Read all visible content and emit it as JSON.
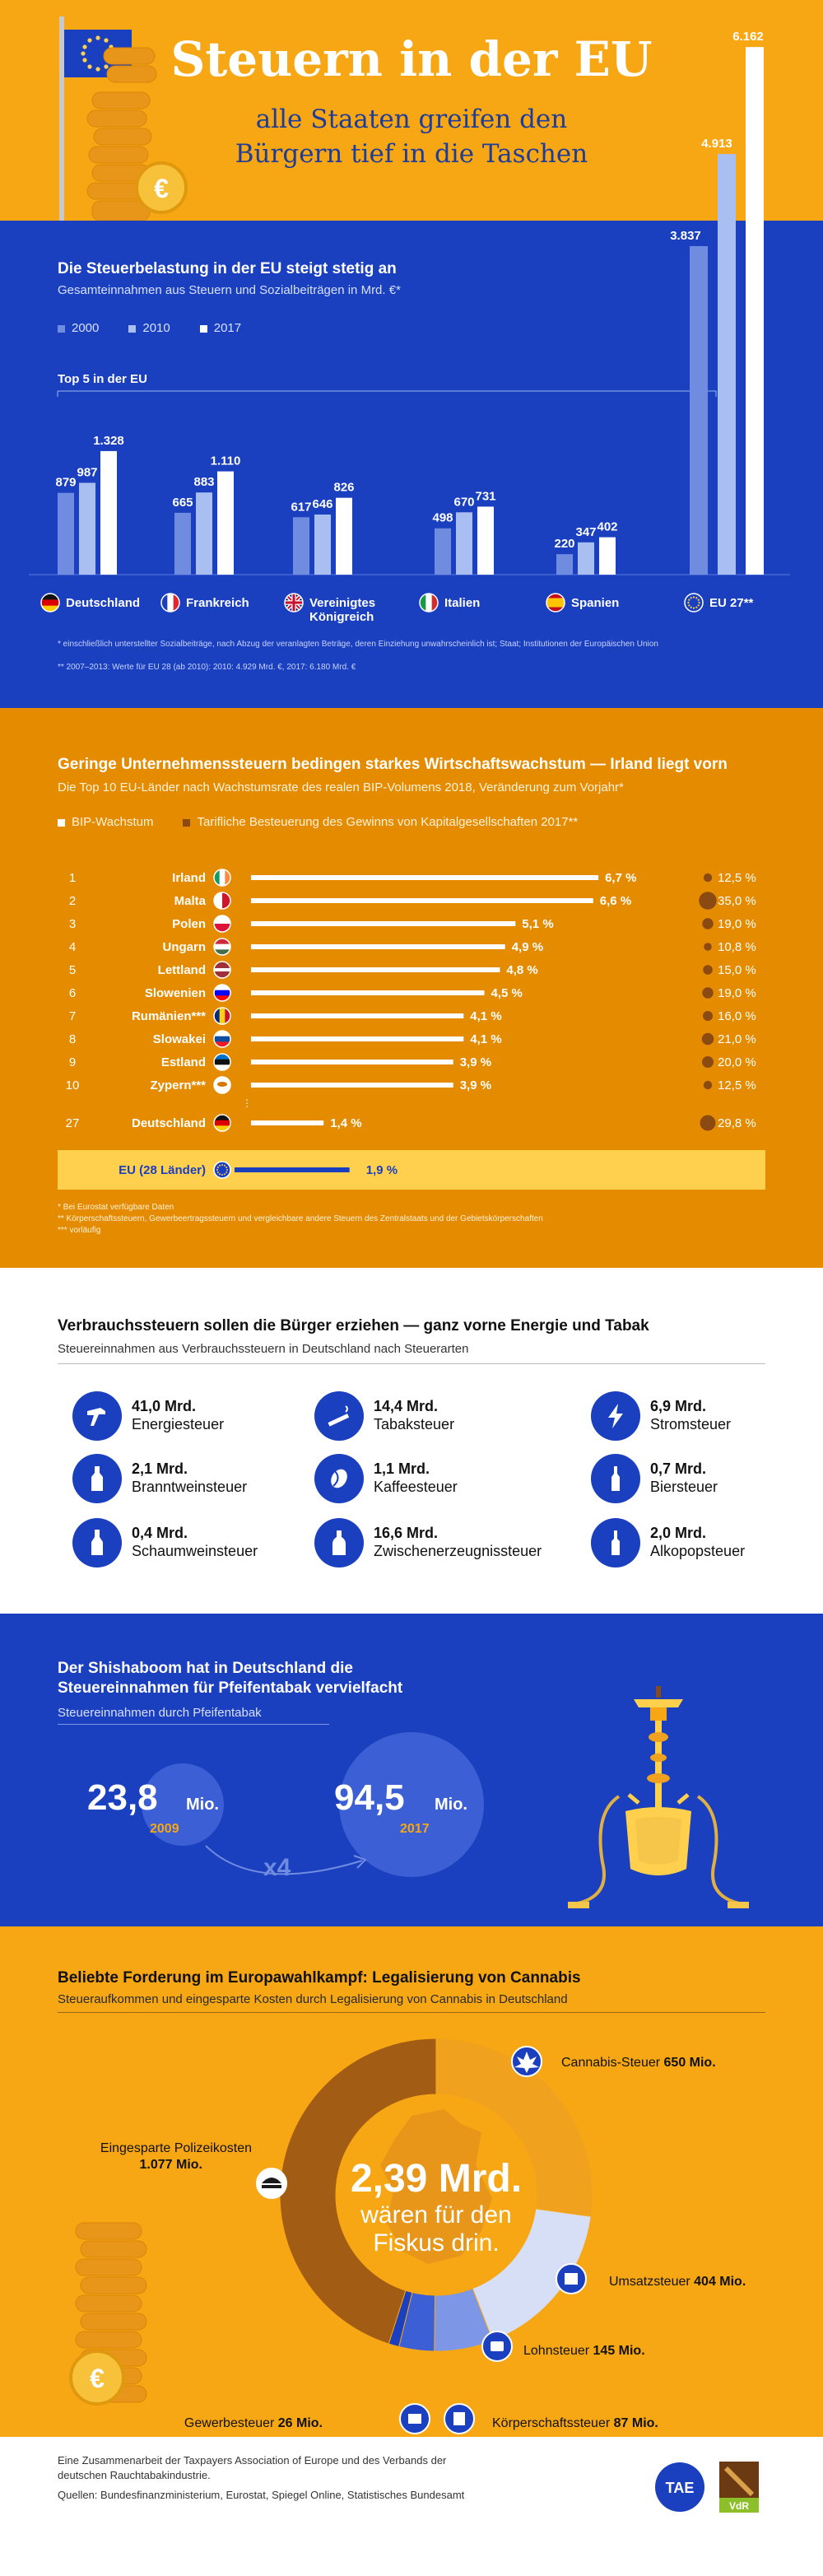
{
  "header": {
    "title": "Steuern in der EU",
    "subtitle_line1": "alle Staaten greifen den",
    "subtitle_line2": "Bürgern tief in die Taschen",
    "coin_symbol": "€"
  },
  "section1": {
    "heading": "Die Steuerbelastung in der EU steigt stetig an",
    "subheading": "Gesamteinnahmen aus Steuern und Sozialbeiträgen in Mrd. €*",
    "legend": [
      "2000",
      "2010",
      "2017"
    ],
    "top5_label": "Top 5 in der EU",
    "footnote1": "*  einschließlich unterstellter Sozialbeiträge, nach Abzug der veranlagten Beträge, deren Einziehung unwahrscheinlich ist; Staat; Institutionen der Europäischen Union",
    "footnote2": "** 2007–2013: Werte für EU 28 (ab 2010): 2010: 4.929 Mrd. €, 2017: 6.180 Mrd. €"
  },
  "chart_data": [
    {
      "type": "bar",
      "title": "Die Steuerbelastung in der EU steigt stetig an",
      "subtitle": "Gesamteinnahmen aus Steuern und Sozialbeiträgen in Mrd. €*",
      "categories": [
        "Deutschland",
        "Frankreich",
        "Vereinigtes Königreich",
        "Italien",
        "Spanien",
        "EU 27**"
      ],
      "category_lines": [
        [
          "Deutschland"
        ],
        [
          "Frankreich"
        ],
        [
          "Vereinigtes",
          "Königreich"
        ],
        [
          "Italien"
        ],
        [
          "Spanien"
        ],
        [
          "EU 27**"
        ]
      ],
      "series": [
        {
          "name": "2000",
          "values": [
            879,
            665,
            617,
            498,
            220,
            3837
          ],
          "labels": [
            "879",
            "665",
            "617",
            "498",
            "220",
            "3.837"
          ]
        },
        {
          "name": "2010",
          "values": [
            987,
            883,
            646,
            670,
            347,
            4913
          ],
          "labels": [
            "987",
            "883",
            "646",
            "670",
            "347",
            "4.913"
          ]
        },
        {
          "name": "2017",
          "values": [
            1328,
            1110,
            826,
            731,
            402,
            6162
          ],
          "labels": [
            "1.328",
            "1.110",
            "826",
            "731",
            "402",
            "6.162"
          ]
        }
      ],
      "colors": [
        "#6f8ce0",
        "#a9bff2",
        "#ffffff"
      ]
    },
    {
      "type": "bar",
      "title": "Geringe Unternehmenssteuern bedingen starkes Wirtschaftswachstum — Irland liegt vorn",
      "subtitle": "Die Top 10 EU-Länder nach Wachstumsrate des realen BIP-Volumens 2018, Veränderung zum Vorjahr*",
      "legend": [
        "BIP-Wachstum",
        "Tarifliche Besteuerung des Gewinns von Kapitalgesellschaften 2017**"
      ],
      "rows": [
        {
          "rank": "1",
          "country": "Irland",
          "growth": 6.7,
          "growth_label": "6,7 %",
          "tax": 12.5,
          "tax_label": "12,5 %",
          "flag": "ie"
        },
        {
          "rank": "2",
          "country": "Malta",
          "growth": 6.6,
          "growth_label": "6,6 %",
          "tax": 35.0,
          "tax_label": "35,0 %",
          "flag": "mt"
        },
        {
          "rank": "3",
          "country": "Polen",
          "growth": 5.1,
          "growth_label": "5,1 %",
          "tax": 19.0,
          "tax_label": "19,0 %",
          "flag": "pl"
        },
        {
          "rank": "4",
          "country": "Ungarn",
          "growth": 4.9,
          "growth_label": "4,9 %",
          "tax": 10.8,
          "tax_label": "10,8 %",
          "flag": "hu"
        },
        {
          "rank": "5",
          "country": "Lettland",
          "growth": 4.8,
          "growth_label": "4,8 %",
          "tax": 15.0,
          "tax_label": "15,0 %",
          "flag": "lv"
        },
        {
          "rank": "6",
          "country": "Slowenien",
          "growth": 4.5,
          "growth_label": "4,5 %",
          "tax": 19.0,
          "tax_label": "19,0 %",
          "flag": "si"
        },
        {
          "rank": "7",
          "country": "Rumänien***",
          "growth": 4.1,
          "growth_label": "4,1 %",
          "tax": 16.0,
          "tax_label": "16,0 %",
          "flag": "ro"
        },
        {
          "rank": "8",
          "country": "Slowakei",
          "growth": 4.1,
          "growth_label": "4,1 %",
          "tax": 21.0,
          "tax_label": "21,0 %",
          "flag": "sk"
        },
        {
          "rank": "9",
          "country": "Estland",
          "growth": 3.9,
          "growth_label": "3,9 %",
          "tax": 20.0,
          "tax_label": "20,0 %",
          "flag": "ee"
        },
        {
          "rank": "10",
          "country": "Zypern***",
          "growth": 3.9,
          "growth_label": "3,9 %",
          "tax": 12.5,
          "tax_label": "12,5 %",
          "flag": "cy"
        },
        {
          "rank": "27",
          "country": "Deutschland",
          "growth": 1.4,
          "growth_label": "1,4 %",
          "tax": 29.8,
          "tax_label": "29,8 %",
          "flag": "de"
        }
      ],
      "eu_row": {
        "country": "EU (28 Länder)",
        "growth": 1.9,
        "growth_label": "1,9 %"
      },
      "colors": {
        "growth_bar": "#ffffff",
        "eu_bar": "#1a3fbf",
        "tax_dot": "#8a4a12",
        "eu_band": "#ffd04d"
      }
    },
    {
      "type": "pie",
      "title": "Beliebte Forderung im Europawahlkampf: Legalisierung von Cannabis",
      "subtitle": "Steueraufkommen und eingesparte Kosten durch Legalisierung von Cannabis in Deutschland",
      "center_value": "2,39 Mrd.",
      "center_text": [
        "wären für den",
        "Fiskus drin."
      ],
      "slices": [
        {
          "name": "Cannabis-Steuer",
          "value": 650,
          "label": "650 Mio.",
          "color": "#f0a11e"
        },
        {
          "name": "Umsatzsteuer",
          "value": 404,
          "label": "404 Mio.",
          "color": "#d7dff7"
        },
        {
          "name": "Lohnsteuer",
          "value": 145,
          "label": "145 Mio.",
          "color": "#7d96e6"
        },
        {
          "name": "Körperschaftssteuer",
          "value": 87,
          "label": "87 Mio.",
          "color": "#3c5fd6"
        },
        {
          "name": "Gewerbesteuer",
          "value": 26,
          "label": "26 Mio.",
          "color": "#1a3fbf"
        },
        {
          "name": "Eingesparte Polizeikosten",
          "value": 1077,
          "label": "1.077 Mio.",
          "color": "#a35c14"
        }
      ]
    }
  ],
  "section2": {
    "heading": "Geringe Unternehmenssteuern bedingen starkes Wirtschaftswachstum — Irland liegt vorn",
    "subheading": "Die Top 10 EU-Länder nach Wachstumsrate des realen BIP-Volumens 2018, Veränderung zum Vorjahr*",
    "legend_growth": "BIP-Wachstum",
    "legend_tax": "Tarifliche Besteuerung des Gewinns von Kapitalgesellschaften 2017**",
    "footnote1": "*   Bei Eurostat verfügbare Daten",
    "footnote2": "**  Körperschaftssteuern, Gewerbeertragssteuern und vergleichbare andere Steuern des Zentralstaats und der Gebietskörperschaften",
    "footnote3": "*** vorläufig"
  },
  "section3": {
    "heading": "Verbrauchssteuern sollen die Bürger erziehen — ganz vorne Energie und Tabak",
    "subheading": "Steuereinnahmen aus Verbrauchssteuern in Deutschland nach Steuerarten",
    "items": [
      {
        "amount": "41,0 Mrd.",
        "name": "Energiesteuer",
        "icon": "fuel-nozzle-icon"
      },
      {
        "amount": "14,4 Mrd.",
        "name": "Tabaksteuer",
        "icon": "cigarette-icon"
      },
      {
        "amount": "6,9 Mrd.",
        "name": "Stromsteuer",
        "icon": "lightning-icon"
      },
      {
        "amount": "2,1 Mrd.",
        "name": "Branntweinsteuer",
        "icon": "spirits-bottle-icon"
      },
      {
        "amount": "1,1 Mrd.",
        "name": "Kaffeesteuer",
        "icon": "coffee-bean-icon"
      },
      {
        "amount": "0,7 Mrd.",
        "name": "Biersteuer",
        "icon": "beer-bottle-icon"
      },
      {
        "amount": "0,4 Mrd.",
        "name": "Schaumweinsteuer",
        "icon": "sparkling-wine-bottle-icon"
      },
      {
        "amount": "16,6 Mrd.",
        "name": "Zwischenerzeugnissteuer",
        "icon": "wine-bottle-icon"
      },
      {
        "amount": "2,0 Mrd.",
        "name": "Alkopopsteuer",
        "icon": "alcopop-bottle-icon"
      }
    ]
  },
  "section4": {
    "heading_line1": "Der Shishaboom hat in Deutschland die",
    "heading_line2": "Steuereinnahmen für Pfeifentabak vervielfacht",
    "subheading": "Steuereinnahmen durch Pfeifentabak",
    "value_2009": "23,8",
    "unit_2009": "Mio.",
    "year_2009": "2009",
    "value_2017": "94,5",
    "unit_2017": "Mio.",
    "year_2017": "2017",
    "multiplier": "x4"
  },
  "section5": {
    "heading": "Beliebte Forderung im Europawahlkampf: Legalisierung von Cannabis",
    "subheading": "Steueraufkommen und eingesparte Kosten durch Legalisierung von Cannabis in Deutschland"
  },
  "footer": {
    "line1": "Eine Zusammenarbeit der Taxpayers Association of Europe und des Verbands der",
    "line2": "deutschen Rauchtabakindustrie.",
    "sources": "Quellen: Bundesfinanzministerium, Eurostat, Spiegel Online, Statistisches Bundesamt",
    "logo_tae": "TAE",
    "logo_vdr": "VdR"
  }
}
